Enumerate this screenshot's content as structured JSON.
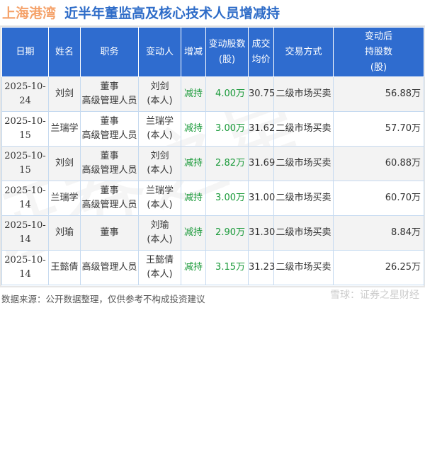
{
  "title": {
    "company": "上海港湾",
    "subject": "近半年董监高及核心技术人员增减持"
  },
  "headers": [
    "日期",
    "姓名",
    "职务",
    "变动人",
    "增减",
    "变动股数(股)",
    "成交均价",
    "交易方式",
    "变动后持股数(股)"
  ],
  "rows": [
    {
      "date": "2025-10-24",
      "name": "刘剑",
      "role1": "董事",
      "role2": "高级管理人员",
      "person1": "刘剑",
      "person2": "(本人)",
      "dir": "减持",
      "shares": "4.00万",
      "price": "30.75",
      "method": "二级市场买卖",
      "after": "56.88万"
    },
    {
      "date": "2025-10-15",
      "name": "兰瑞学",
      "role1": "董事",
      "role2": "高级管理人员",
      "person1": "兰瑞学",
      "person2": "(本人)",
      "dir": "减持",
      "shares": "3.00万",
      "price": "31.62",
      "method": "二级市场买卖",
      "after": "57.70万"
    },
    {
      "date": "2025-10-15",
      "name": "刘剑",
      "role1": "董事",
      "role2": "高级管理人员",
      "person1": "刘剑",
      "person2": "(本人)",
      "dir": "减持",
      "shares": "2.82万",
      "price": "31.69",
      "method": "二级市场买卖",
      "after": "60.88万"
    },
    {
      "date": "2025-10-14",
      "name": "兰瑞学",
      "role1": "董事",
      "role2": "高级管理人员",
      "person1": "兰瑞学",
      "person2": "(本人)",
      "dir": "减持",
      "shares": "3.00万",
      "price": "31.00",
      "method": "二级市场买卖",
      "after": "60.70万"
    },
    {
      "date": "2025-10-14",
      "name": "刘瑜",
      "role1": "董事",
      "role2": "",
      "person1": "刘瑜",
      "person2": "(本人)",
      "dir": "减持",
      "shares": "2.90万",
      "price": "31.30",
      "method": "二级市场买卖",
      "after": "8.84万"
    },
    {
      "date": "2025-10-14",
      "name": "王懿倩",
      "role1": "高级管理人员",
      "role2": "",
      "person1": "王懿倩",
      "person2": "(本人)",
      "dir": "减持",
      "shares": "3.15万",
      "price": "31.23",
      "method": "二级市场买卖",
      "after": "26.25万"
    }
  ],
  "footer": "数据来源：公开数据整理，仅供参考不构成投资建议",
  "watermark": "雪球：证券之星财经",
  "colors": {
    "header_bg": "#2f6ccf",
    "decrease": "#1a9a3a",
    "company": "#f5a26a",
    "subject": "#2e6cc8"
  }
}
